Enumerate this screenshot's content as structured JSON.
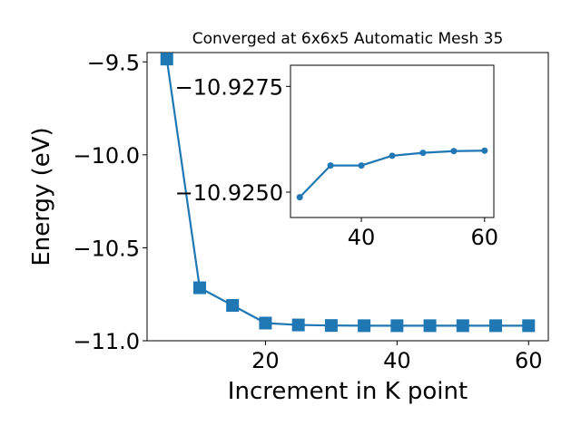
{
  "chart_data": [
    {
      "type": "line",
      "title": "Converged at 6x6x5 Automatic Mesh 35",
      "xlabel": "Increment in K point",
      "ylabel": "Energy (eV)",
      "xlim": [
        2,
        63
      ],
      "ylim": [
        -11.0,
        -9.45
      ],
      "xticks": [
        20,
        40,
        60
      ],
      "yticks": [
        -11.0,
        -10.5,
        -10.0,
        -9.5
      ],
      "xtick_labels": [
        "20",
        "40",
        "60"
      ],
      "ytick_labels": [
        "−11.0",
        "−10.5",
        "−10.0",
        "−9.5"
      ],
      "grid": false,
      "color": "#1f77b4",
      "marker": "square",
      "series": [
        {
          "x": [
            5,
            10,
            15,
            20,
            25,
            30,
            35,
            40,
            45,
            50,
            55,
            60
          ],
          "y": [
            -9.485,
            -10.715,
            -10.81,
            -10.905,
            -10.915,
            -10.918,
            -10.919,
            -10.919,
            -10.919,
            -10.919,
            -10.919,
            -10.919
          ]
        }
      ]
    },
    {
      "type": "line",
      "title": "",
      "xlabel": "",
      "ylabel": "",
      "xlim": [
        28.5,
        61.5
      ],
      "ylim": [
        -10.9244,
        -10.928
      ],
      "xticks": [
        40,
        60
      ],
      "yticks": [
        -10.925,
        -10.9275
      ],
      "xtick_labels": [
        "40",
        "60"
      ],
      "ytick_labels": [
        "−10.9250",
        "−10.9275"
      ],
      "grid": false,
      "color": "#1f77b4",
      "marker": "circle",
      "series": [
        {
          "x": [
            30,
            35,
            40,
            45,
            50,
            55,
            60
          ],
          "y": [
            -10.92488,
            -10.92563,
            -10.92563,
            -10.92586,
            -10.92593,
            -10.92597,
            -10.92598
          ]
        }
      ]
    }
  ]
}
